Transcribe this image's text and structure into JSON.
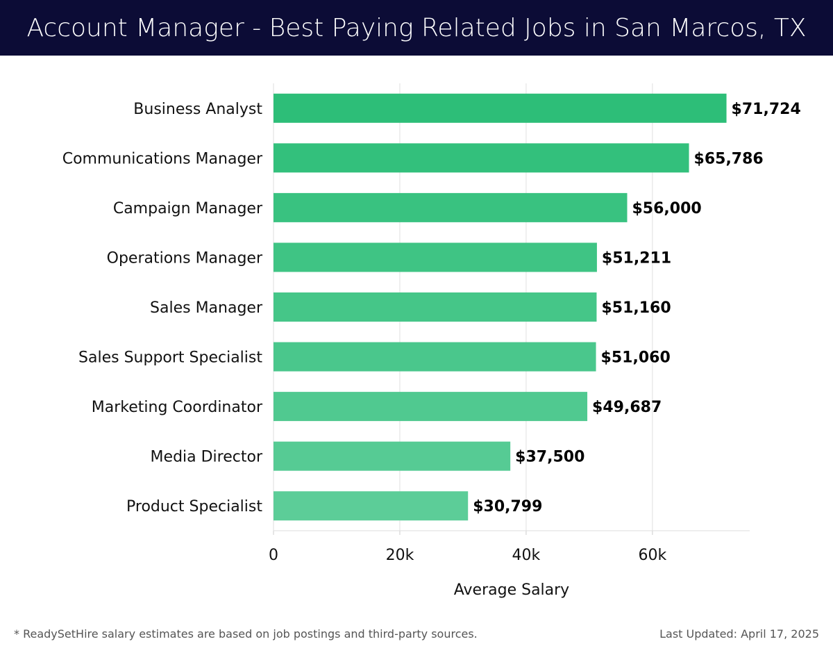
{
  "title": "Account Manager - Best Paying Related Jobs in San Marcos, TX",
  "footer": {
    "note": "* ReadySetHire salary estimates are based on job postings and third-party sources.",
    "updated": "Last Updated: April 17, 2025"
  },
  "chart_data": {
    "type": "bar",
    "orientation": "horizontal",
    "categories": [
      "Business Analyst",
      "Communications Manager",
      "Campaign Manager",
      "Operations Manager",
      "Sales Manager",
      "Sales Support Specialist",
      "Marketing Coordinator",
      "Media Director",
      "Product Specialist"
    ],
    "values": [
      71724,
      65786,
      56000,
      51211,
      51160,
      51060,
      49687,
      37500,
      30799
    ],
    "labels": [
      "$71,724",
      "$65,786",
      "$56,000",
      "$51,211",
      "$51,160",
      "$51,060",
      "$49,687",
      "$37,500",
      "$30,799"
    ],
    "xlabel": "Average Salary",
    "ylabel": "",
    "xlim": [
      0,
      75400
    ],
    "xticks": [
      0,
      20000,
      40000,
      60000
    ],
    "xtick_labels": [
      "0",
      "20k",
      "40k",
      "60k"
    ],
    "grid": true,
    "colors": {
      "top": "#2dbe78",
      "bottom": "#5ccd98"
    }
  }
}
